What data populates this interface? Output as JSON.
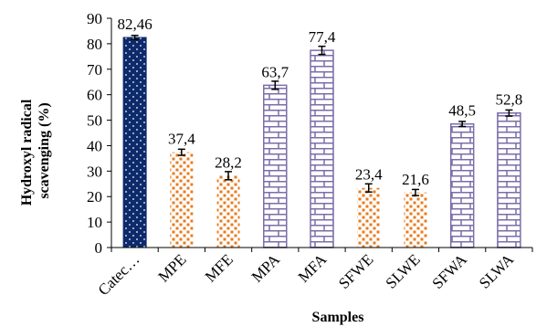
{
  "chart_data": {
    "type": "bar",
    "xlabel": "Samples",
    "ylabel": "Hydroxyl radical scavenging (%)",
    "ylabel_lines": [
      "Hydroxyl radical",
      "scavenging (%)"
    ],
    "ylim": [
      0,
      90
    ],
    "yticks": [
      0,
      10,
      20,
      30,
      40,
      50,
      60,
      70,
      80,
      90
    ],
    "grid": false,
    "categories": [
      "Catec…",
      "MPE",
      "MFE",
      "MPA",
      "MFA",
      "SFWE",
      "SLWE",
      "SFWA",
      "SLWA"
    ],
    "values": [
      82.46,
      37.4,
      28.2,
      63.7,
      77.4,
      23.4,
      21.6,
      48.5,
      52.8
    ],
    "value_labels": [
      "82,46",
      "37,4",
      "28,2",
      "63,7",
      "77,4",
      "23,4",
      "21,6",
      "48,5",
      "52,8"
    ],
    "errors": [
      0.8,
      1.2,
      1.6,
      1.6,
      1.6,
      1.6,
      1.2,
      1.0,
      1.2
    ],
    "bar_styles": [
      "navy-dots",
      "orange-dots",
      "orange-dots",
      "purple-brick",
      "purple-brick",
      "orange-dots",
      "orange-dots",
      "purple-brick",
      "purple-brick"
    ],
    "colors": {
      "navy": "#0d2a6b",
      "orange": "#e87b1e",
      "purple": "#7b6ea8",
      "axis": "#000000"
    }
  }
}
